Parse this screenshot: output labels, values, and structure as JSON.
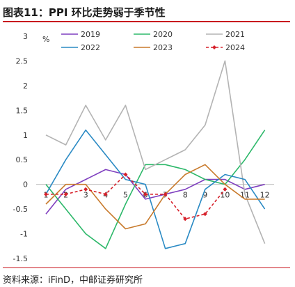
{
  "title": "图表11：PPI 环比走势弱于季节性",
  "source": "资料来源：iFinD，中邮证券研究所",
  "chart_data": {
    "type": "line",
    "unit": "%",
    "categories": [
      "1",
      "2",
      "3",
      "4",
      "5",
      "6",
      "7",
      "8",
      "9",
      "10",
      "11",
      "12"
    ],
    "ylim": [
      -1.5,
      3
    ],
    "yticks": [
      "3",
      "2.5",
      "2",
      "1.5",
      "1",
      "0.5",
      "0",
      "-0.5",
      "-1",
      "-1.5"
    ],
    "grid": false,
    "legend_position": "top",
    "series": [
      {
        "name": "2019",
        "color": "#7f3fbf",
        "values": [
          -0.6,
          -0.1,
          0.1,
          0.3,
          0.2,
          -0.3,
          -0.2,
          -0.1,
          0.1,
          0.1,
          -0.1,
          0.0
        ]
      },
      {
        "name": "2020",
        "color": "#2db86a",
        "values": [
          0.0,
          -0.5,
          -1.0,
          -1.3,
          -0.4,
          0.4,
          0.4,
          0.3,
          0.1,
          0.0,
          0.5,
          1.1
        ]
      },
      {
        "name": "2021",
        "color": "#b3b3b3",
        "values": [
          1.0,
          0.8,
          1.6,
          0.9,
          1.6,
          0.3,
          0.5,
          0.7,
          1.2,
          2.5,
          -0.2,
          -1.2
        ]
      },
      {
        "name": "2022",
        "color": "#2a8ac4",
        "values": [
          -0.2,
          0.5,
          1.1,
          0.6,
          0.1,
          0.0,
          -1.3,
          -1.2,
          -0.1,
          0.2,
          0.1,
          -0.5
        ]
      },
      {
        "name": "2023",
        "color": "#c87a2c",
        "values": [
          -0.4,
          0.0,
          0.0,
          -0.5,
          -0.9,
          -0.8,
          -0.2,
          0.2,
          0.4,
          0.0,
          -0.3,
          -0.3
        ]
      },
      {
        "name": "2024",
        "color": "#d6202a",
        "marker": true,
        "values": [
          -0.2,
          -0.2,
          -0.1,
          -0.2,
          0.2,
          -0.2,
          -0.2,
          -0.7,
          -0.6,
          -0.1,
          null,
          null
        ]
      }
    ]
  }
}
